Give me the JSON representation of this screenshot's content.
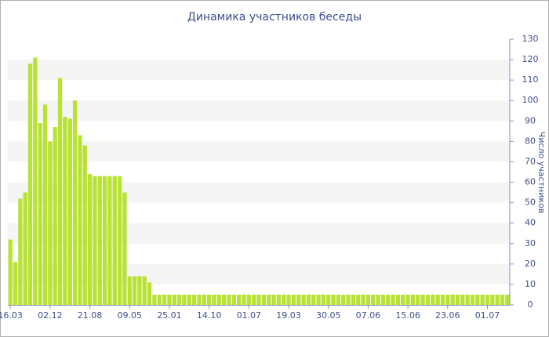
{
  "chart_data": {
    "type": "bar",
    "title": "Динамика участников беседы",
    "y_label": "Число участников",
    "categories": [
      "16.03",
      null,
      null,
      null,
      null,
      null,
      null,
      null,
      "02.12",
      null,
      null,
      null,
      null,
      null,
      null,
      null,
      "21.08",
      null,
      null,
      null,
      null,
      null,
      null,
      null,
      "09.05",
      null,
      null,
      null,
      null,
      null,
      null,
      null,
      "25.01",
      null,
      null,
      null,
      null,
      null,
      null,
      null,
      "14.10",
      null,
      null,
      null,
      null,
      null,
      null,
      null,
      "01.07",
      null,
      null,
      null,
      null,
      null,
      null,
      null,
      "19.03",
      null,
      null,
      null,
      null,
      null,
      null,
      null,
      "30.05",
      null,
      null,
      null,
      null,
      null,
      null,
      null,
      "07.06",
      null,
      null,
      null,
      null,
      null,
      null,
      null,
      "15.06",
      null,
      null,
      null,
      null,
      null,
      null,
      null,
      "23.06",
      null,
      null,
      null,
      null,
      null,
      null,
      null,
      "01.07",
      null,
      null,
      null,
      null
    ],
    "values": [
      32,
      21,
      52,
      55,
      118,
      121,
      89,
      98,
      80,
      87,
      111,
      92,
      91,
      100,
      83,
      78,
      64,
      63,
      63,
      63,
      63,
      63,
      63,
      55,
      14,
      14,
      14,
      14,
      11,
      5,
      5,
      5,
      5,
      5,
      5,
      5,
      5,
      5,
      5,
      5,
      5,
      5,
      5,
      5,
      5,
      5,
      5,
      5,
      5,
      5,
      5,
      5,
      5,
      5,
      5,
      5,
      5,
      5,
      5,
      5,
      5,
      5,
      5,
      5,
      5,
      5,
      5,
      5,
      5,
      5,
      5,
      5,
      5,
      5,
      5,
      5,
      5,
      5,
      5,
      5,
      5,
      5,
      5,
      5,
      5,
      5,
      5,
      5,
      5,
      5,
      5,
      5,
      5,
      5,
      5,
      5,
      5,
      5,
      5,
      5,
      5
    ],
    "color": "#b8e236",
    "ylim": [
      0,
      130
    ],
    "yticks": [
      0,
      10,
      20,
      30,
      40,
      50,
      60,
      70,
      80,
      90,
      100,
      110,
      120,
      130
    ],
    "grid": "bands",
    "y_axis_side": "right"
  }
}
